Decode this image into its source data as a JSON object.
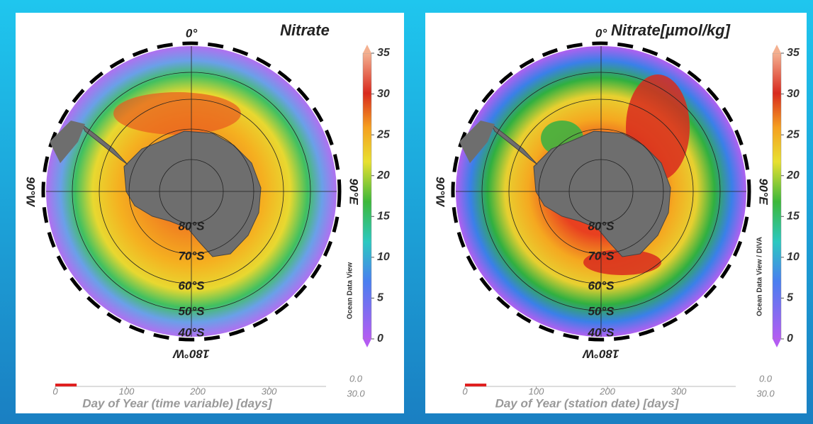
{
  "panels": [
    {
      "title": "Nitrate",
      "lon_labels": {
        "top": "0°",
        "left": "90°W",
        "right": "90°E",
        "bottom": "180°W"
      },
      "lat_labels": [
        "80°S",
        "70°S",
        "60°S",
        "50°S",
        "40°S"
      ],
      "colorbar": {
        "lim": [
          0,
          35
        ],
        "ticks": [
          0,
          5,
          10,
          15,
          20,
          25,
          30,
          35
        ]
      },
      "credit": "Ocean Data View",
      "timeline": {
        "label": "Day of Year (time variable) [days]",
        "lim": [
          0,
          380
        ],
        "ticks": [
          0,
          100,
          200,
          300
        ],
        "range": [
          {
            "value": 0,
            "label": "0.0"
          },
          {
            "value": 30,
            "label": "30.0"
          }
        ]
      }
    },
    {
      "title": "Nitrate[µmol/kg]",
      "lon_labels": {
        "top": "0°",
        "left": "90°W",
        "right": "90°E",
        "bottom": "180°W"
      },
      "lat_labels": [
        "80°S",
        "70°S",
        "60°S",
        "50°S",
        "40°S"
      ],
      "colorbar": {
        "lim": [
          0,
          35
        ],
        "ticks": [
          0,
          5,
          10,
          15,
          20,
          25,
          30,
          35
        ]
      },
      "credit": "Ocean Data View / DIVA",
      "timeline": {
        "label": "Day of Year (station date) [days]",
        "lim": [
          0,
          380
        ],
        "ticks": [
          0,
          100,
          200,
          300
        ],
        "range": [
          {
            "value": 0,
            "label": "0.0"
          },
          {
            "value": 30,
            "label": "30.0"
          }
        ]
      }
    }
  ]
}
